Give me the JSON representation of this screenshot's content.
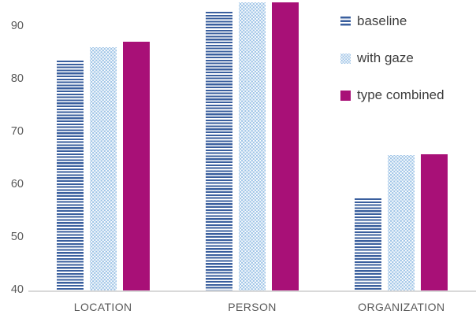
{
  "chart_data": {
    "type": "bar",
    "title": "",
    "xlabel": "",
    "ylabel": "",
    "categories": [
      "LOCATION",
      "PERSON",
      "ORGANIZATION"
    ],
    "series": [
      {
        "name": "baseline",
        "pattern": "horizontal-stripes",
        "color": "#3A5F9E",
        "values": [
          83.6,
          92.9,
          57.4
        ]
      },
      {
        "name": "with gaze",
        "pattern": "dotted-lattice",
        "color": "#9DC3E6",
        "values": [
          86.2,
          94.6,
          65.7
        ]
      },
      {
        "name": "type combined",
        "pattern": "solid",
        "color": "#A81077",
        "values": [
          87.2,
          94.7,
          65.8
        ]
      }
    ],
    "yticks": [
      40,
      50,
      60,
      70,
      80,
      90
    ],
    "ylim": [
      40,
      95
    ],
    "grid": false,
    "legend_position": "upper-right",
    "colors": {
      "background": "#FFFFFF",
      "axis_line": "#D9D9D9",
      "tick_text": "#595959",
      "category_text": "#595959",
      "legend_text": "#3F3F3F"
    }
  }
}
